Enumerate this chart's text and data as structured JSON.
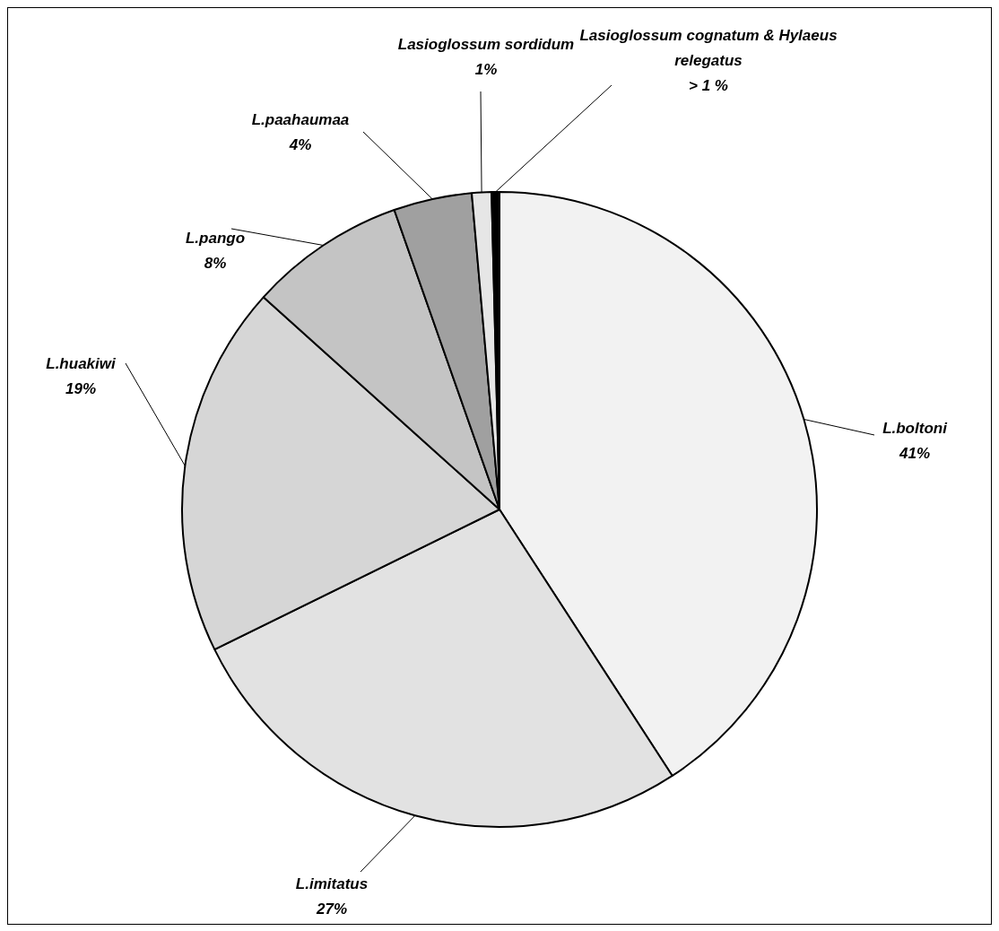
{
  "chart_data": {
    "type": "pie",
    "categories": [
      "L.boltoni",
      "L.imitatus",
      "L.huakiwi",
      "L.pango",
      "L.paahaumaa",
      "Lasioglossum sordidum",
      "Lasioglossum cognatum & Hylaeus relegatus"
    ],
    "values": [
      41,
      27,
      19,
      8,
      4,
      1,
      0.4
    ],
    "value_labels": [
      "41%",
      "27%",
      "19%",
      "8%",
      "4%",
      "1%",
      "> 1 %"
    ],
    "colors": [
      "#f2f2f2",
      "#e2e2e2",
      "#d6d6d6",
      "#c4c4c4",
      "#a0a0a0",
      "#e6e6e6",
      "#000000"
    ],
    "legend": false
  }
}
